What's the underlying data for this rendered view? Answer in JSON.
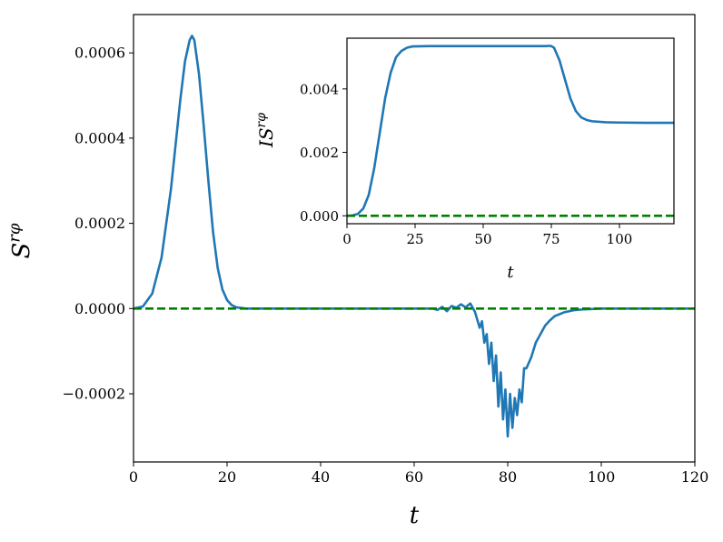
{
  "chart_data": [
    {
      "name": "main",
      "type": "line",
      "xlabel": "t",
      "ylabel": "S",
      "ylabel_sup": "rφ",
      "xlim": [
        0,
        120
      ],
      "ylim": [
        -0.00036,
        0.00069
      ],
      "xticks": [
        0,
        20,
        40,
        60,
        80,
        100,
        120
      ],
      "xtick_labels": [
        "0",
        "20",
        "40",
        "60",
        "80",
        "100",
        "120"
      ],
      "yticks": [
        -0.0002,
        0.0,
        0.0002,
        0.0004,
        0.0006
      ],
      "ytick_labels": [
        "−0.0002",
        "0.0000",
        "0.0002",
        "0.0004",
        "0.0006"
      ],
      "grid": false,
      "legend": "none",
      "series": [
        {
          "color": "#1f77b4",
          "style": "solid",
          "x": [
            0,
            2,
            4,
            6,
            8,
            10,
            11,
            12,
            12.5,
            13,
            14,
            15,
            16,
            17,
            18,
            19,
            20,
            21,
            22,
            24,
            26,
            30,
            40,
            50,
            60,
            64,
            65,
            66,
            67,
            68,
            69,
            70,
            71,
            72,
            73,
            74,
            74.5,
            75,
            75.5,
            76,
            76.5,
            77,
            77.5,
            78,
            78.5,
            79,
            79.5,
            80,
            80.5,
            81,
            81.5,
            82,
            82.5,
            83,
            83.5,
            84,
            85,
            86,
            87,
            88,
            89,
            90,
            92,
            94,
            96,
            98,
            100,
            105,
            110,
            115,
            120
          ],
          "y": [
            0.0,
            5e-06,
            3.5e-05,
            0.00012,
            0.00028,
            0.00049,
            0.00058,
            0.00063,
            0.00064,
            0.00063,
            0.00055,
            0.00043,
            0.0003,
            0.00018,
            9.5e-05,
            4.5e-05,
            2e-05,
            8e-06,
            3e-06,
            0.0,
            0.0,
            0.0,
            0.0,
            0.0,
            0.0,
            0.0,
            -3e-06,
            4e-06,
            -6e-06,
            6e-06,
            2e-06,
            1e-05,
            3e-06,
            1.2e-05,
            -8e-06,
            -4.5e-05,
            -3e-05,
            -8e-05,
            -6e-05,
            -0.00013,
            -8e-05,
            -0.00017,
            -0.00011,
            -0.00023,
            -0.00015,
            -0.00026,
            -0.00019,
            -0.0003,
            -0.0002,
            -0.00028,
            -0.00021,
            -0.00025,
            -0.00019,
            -0.00022,
            -0.00014,
            -0.00014,
            -0.000115,
            -8e-05,
            -6e-05,
            -4e-05,
            -2.8e-05,
            -1.8e-05,
            -9e-06,
            -4e-06,
            -2e-06,
            -1e-06,
            0.0,
            0.0,
            0.0,
            0.0,
            0.0
          ]
        },
        {
          "color": "#008000",
          "style": "dashed",
          "x": [
            0,
            120
          ],
          "y": [
            0,
            0
          ]
        }
      ]
    },
    {
      "name": "inset",
      "type": "line",
      "xlabel": "t",
      "ylabel": "IS",
      "ylabel_sup": "rφ",
      "xlim": [
        0,
        120
      ],
      "ylim": [
        -0.00025,
        0.0056
      ],
      "xticks": [
        0,
        25,
        50,
        75,
        100
      ],
      "xtick_labels": [
        "0",
        "25",
        "50",
        "75",
        "100"
      ],
      "yticks": [
        0.0,
        0.002,
        0.004
      ],
      "ytick_labels": [
        "0.000",
        "0.002",
        "0.004"
      ],
      "grid": false,
      "legend": "none",
      "series": [
        {
          "color": "#1f77b4",
          "style": "solid",
          "x": [
            0,
            2,
            4,
            6,
            8,
            10,
            12,
            14,
            16,
            18,
            20,
            22,
            24,
            30,
            40,
            50,
            60,
            70,
            73,
            74,
            75,
            76,
            78,
            80,
            82,
            84,
            86,
            88,
            90,
            95,
            100,
            110,
            120
          ],
          "y": [
            0.0,
            1e-05,
            6e-05,
            0.00023,
            0.00066,
            0.0015,
            0.0026,
            0.0037,
            0.0045,
            0.005,
            0.0052,
            0.0053,
            0.00534,
            0.00535,
            0.00535,
            0.00535,
            0.00535,
            0.00535,
            0.00535,
            0.00536,
            0.00535,
            0.0053,
            0.0049,
            0.0043,
            0.0037,
            0.0033,
            0.0031,
            0.00302,
            0.00298,
            0.00295,
            0.00294,
            0.00293,
            0.00293
          ]
        },
        {
          "color": "#008000",
          "style": "dashed",
          "x": [
            0,
            120
          ],
          "y": [
            0,
            0
          ]
        }
      ]
    }
  ]
}
